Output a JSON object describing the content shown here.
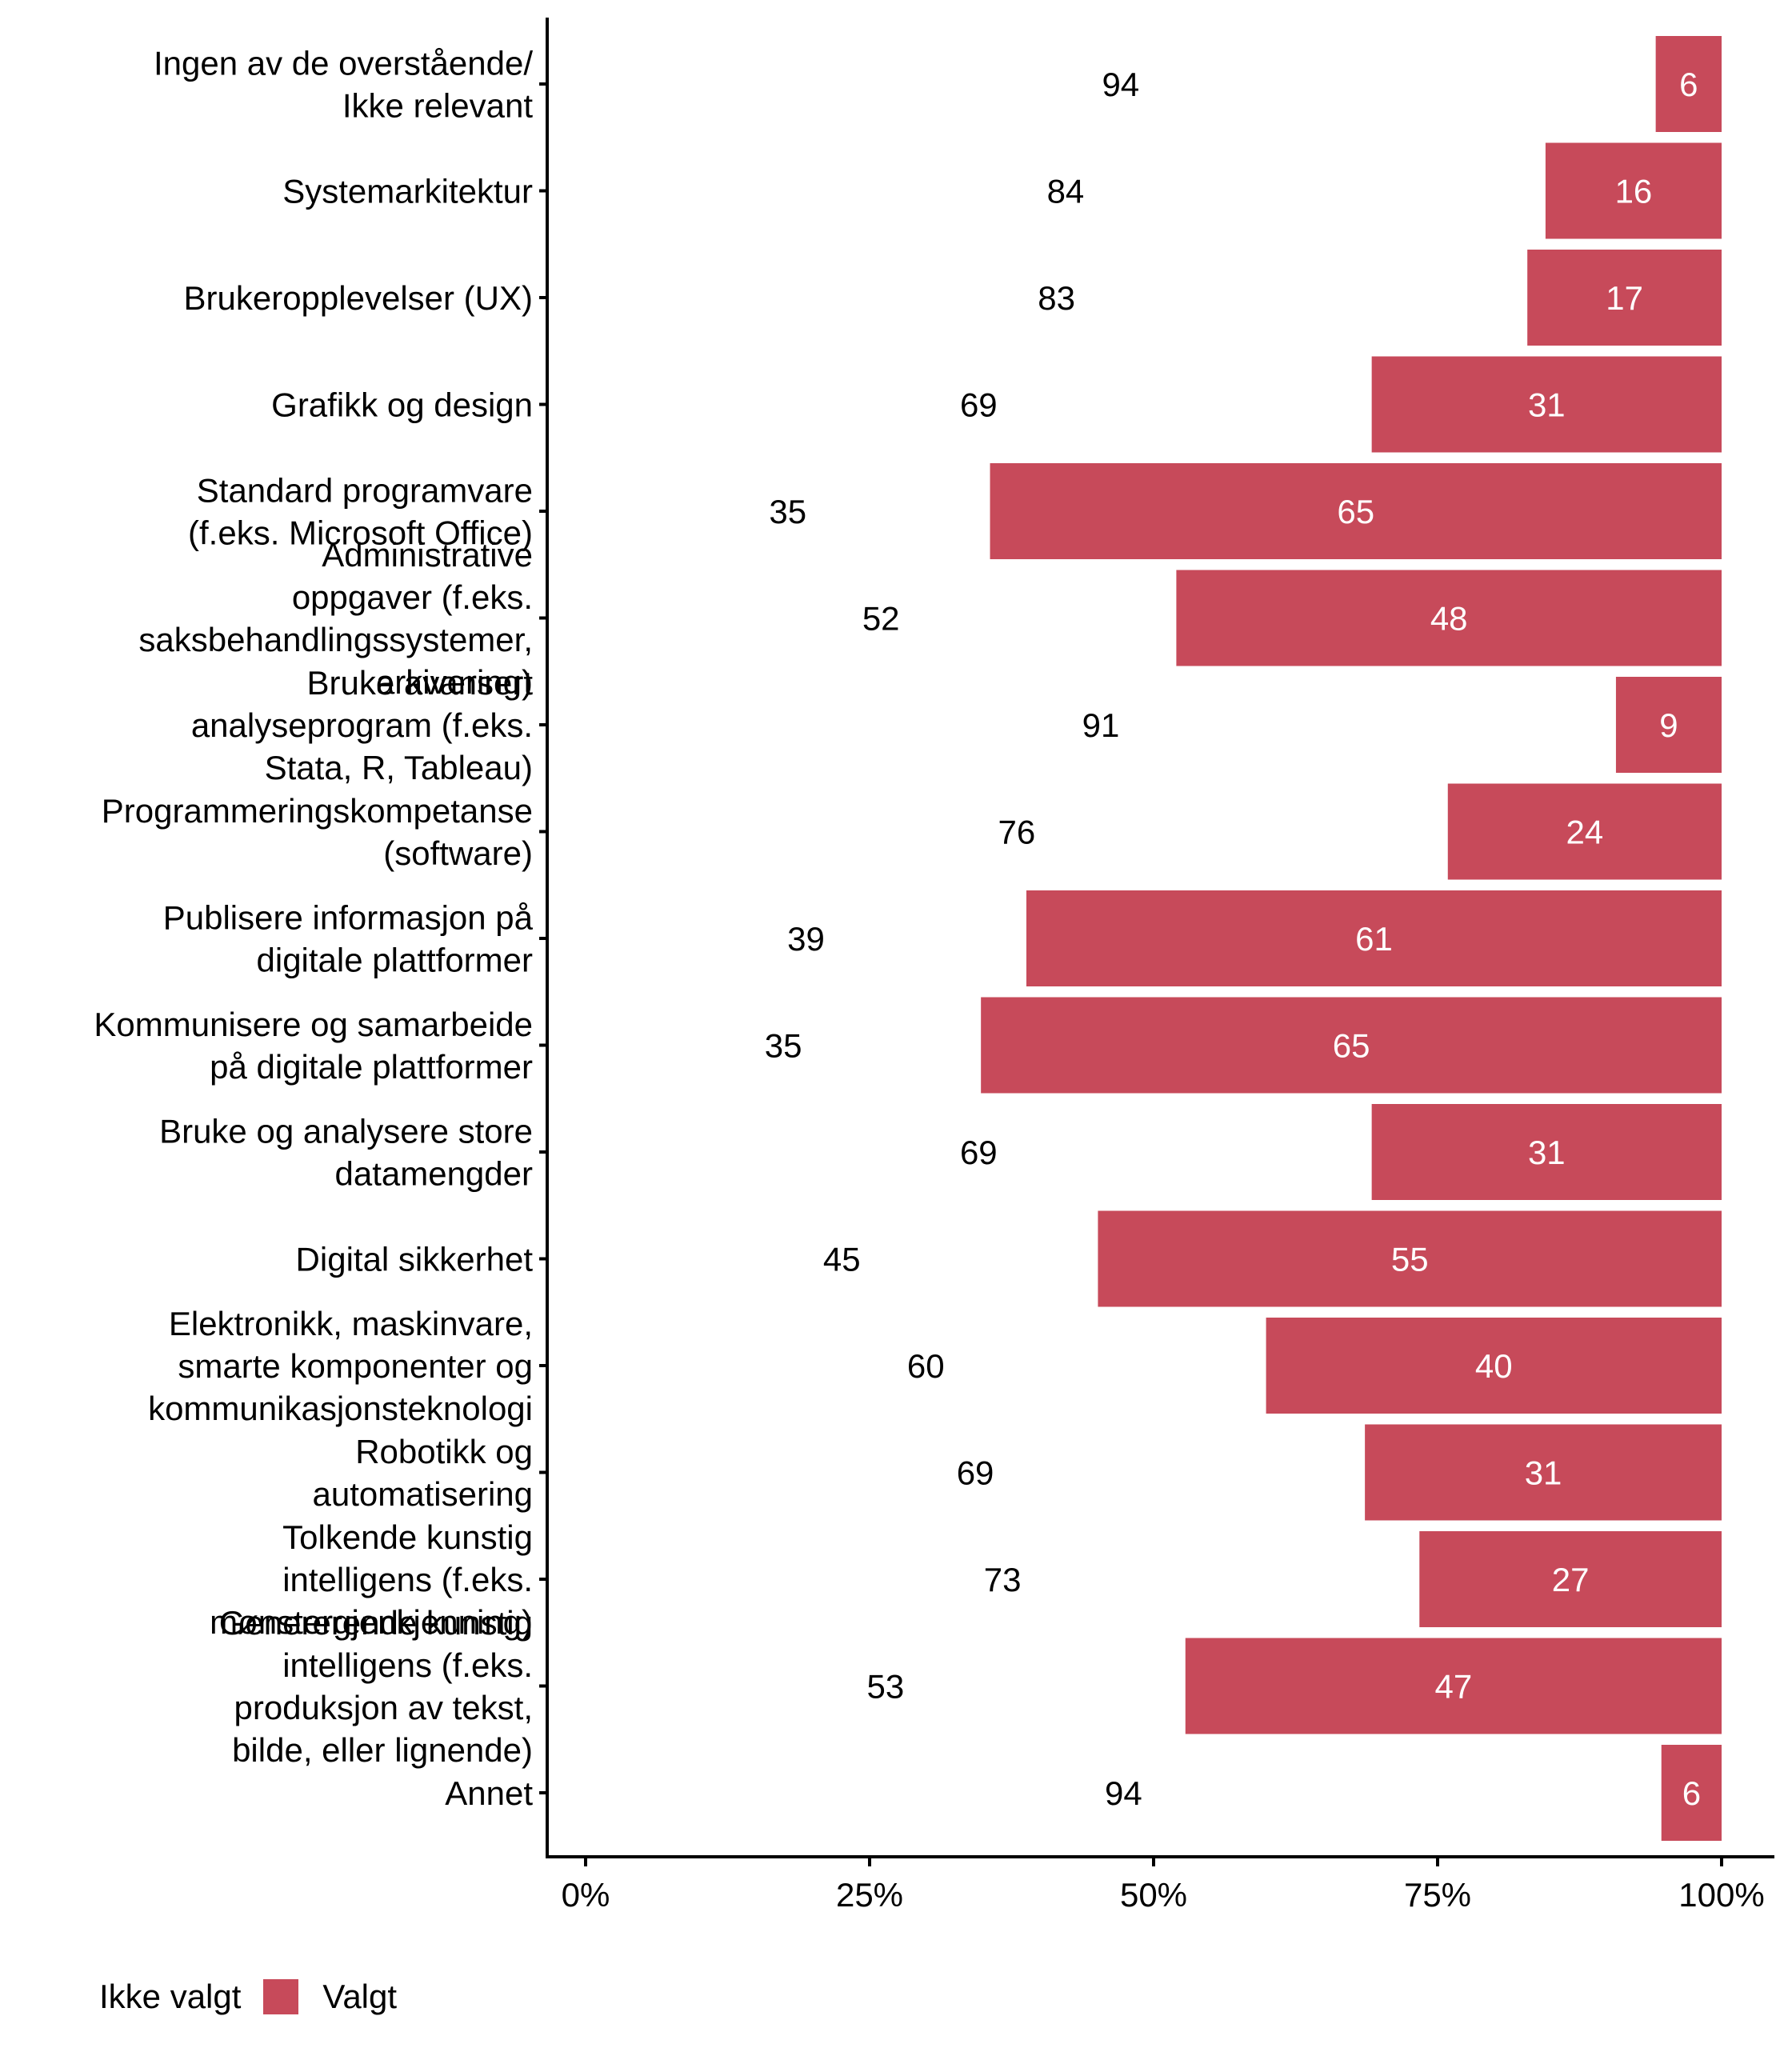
{
  "chart_data": {
    "type": "bar",
    "orientation": "horizontal",
    "stacked": true,
    "title": "",
    "xlabel": "",
    "ylabel": "",
    "xlim": [
      0,
      100
    ],
    "x_ticks": [
      "0%",
      "25%",
      "50%",
      "75%",
      "100%"
    ],
    "x_tick_values": [
      0,
      25,
      50,
      75,
      100
    ],
    "grid": false,
    "legend_position": "bottom-left",
    "categories": [
      "Ingen av de overstående/ Ikke relevant",
      "Systemarkitektur",
      "Brukeropplevelser (UX)",
      "Grafikk og design",
      "Standard programvare (f.eks. Microsoft Office)",
      "Administrative oppgaver (f.eks. saksbehandlingssystemer, arkivering)",
      "Bruke avansert analyseprogram (f.eks. Stata, R, Tableau)",
      "Programmeringskompetanse (software)",
      "Publisere informasjon på digitale plattformer",
      "Kommunisere og samarbeide på digitale plattformer",
      "Bruke og analysere store datamengder",
      "Digital sikkerhet",
      "Elektronikk, maskinvare, smarte komponenter og kommunikasjonsteknologi",
      "Robotikk og automatisering",
      "Tolkende kunstig intelligens (f.eks. mønstergjenkjenning)",
      "Genererende kunstig intelligens (f.eks. produksjon av tekst, bilde, eller lignende)",
      "Annet"
    ],
    "category_lines": [
      [
        "Ingen av de overstående/",
        "Ikke relevant"
      ],
      [
        "Systemarkitektur"
      ],
      [
        "Brukeropplevelser (UX)"
      ],
      [
        "Grafikk og design"
      ],
      [
        "Standard programvare",
        "(f.eks. Microsoft Office)"
      ],
      [
        "Administrative",
        "oppgaver (f.eks.",
        "saksbehandlingssystemer,",
        "arkivering)"
      ],
      [
        "Bruke avansert",
        "analyseprogram (f.eks.",
        "Stata, R, Tableau)"
      ],
      [
        "Programmeringskompetanse",
        "(software)"
      ],
      [
        "Publisere informasjon på",
        "digitale plattformer"
      ],
      [
        "Kommunisere og samarbeide",
        "på digitale plattformer"
      ],
      [
        "Bruke og analysere store",
        "datamengder"
      ],
      [
        "Digital sikkerhet"
      ],
      [
        "Elektronikk, maskinvare,",
        "smarte komponenter og",
        "kommunikasjonsteknologi"
      ],
      [
        "Robotikk og",
        "automatisering"
      ],
      [
        "Tolkende kunstig",
        "intelligens (f.eks.",
        "mønstergjenkjenning)"
      ],
      [
        "Genererende kunstig",
        "intelligens (f.eks.",
        "produksjon av tekst,",
        "bilde, eller lignende)"
      ],
      [
        "Annet"
      ]
    ],
    "series": [
      {
        "name": "Ikke valgt",
        "color": "#FFFFFF",
        "label_color": "#000000",
        "values": [
          94,
          84,
          83,
          69,
          35,
          52,
          91,
          76,
          39,
          35,
          69,
          45,
          60,
          69,
          73,
          53,
          94
        ],
        "extent": [
          94.2,
          84.5,
          82.9,
          69.2,
          35.6,
          52.0,
          90.7,
          75.9,
          38.8,
          34.8,
          69.2,
          45.1,
          59.9,
          68.6,
          73.4,
          52.8,
          94.7
        ]
      },
      {
        "name": "Valgt",
        "color": "#C74A5A",
        "label_color": "#FFFFFF",
        "values": [
          6,
          16,
          17,
          31,
          65,
          48,
          9,
          24,
          61,
          65,
          31,
          55,
          40,
          31,
          27,
          47,
          6
        ]
      }
    ]
  },
  "legend": {
    "items": [
      {
        "label": "Ikke valgt",
        "color": "#FFFFFF"
      },
      {
        "label": "Valgt",
        "color": "#C74A5A"
      }
    ]
  }
}
